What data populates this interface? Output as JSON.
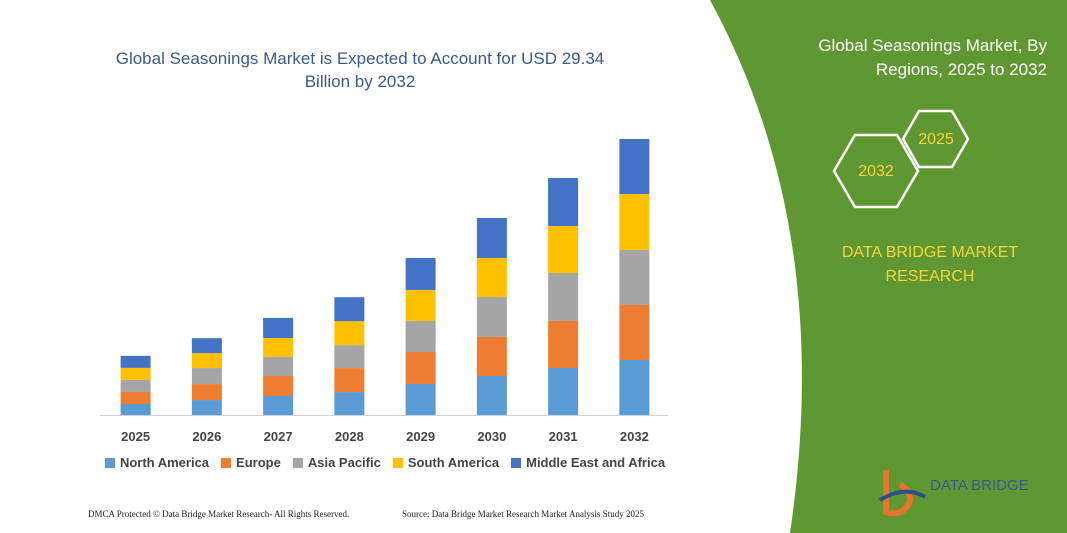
{
  "chart_data": {
    "type": "stacked-bar",
    "title": "Global Seasonings Market is Expected to Account for USD 29.34 Billion by 2032",
    "categories": [
      "2025",
      "2026",
      "2027",
      "2028",
      "2029",
      "2030",
      "2031",
      "2032"
    ],
    "series": [
      {
        "name": "North America",
        "color": "#5b9bd5",
        "values": [
          1.17,
          1.59,
          2.02,
          2.44,
          3.3,
          4.15,
          5.0,
          5.85
        ]
      },
      {
        "name": "Europe",
        "color": "#ed7d31",
        "values": [
          1.28,
          1.7,
          2.13,
          2.55,
          3.4,
          4.15,
          5.0,
          5.85
        ]
      },
      {
        "name": "Asia Pacific",
        "color": "#a5a5a5",
        "values": [
          1.28,
          1.7,
          2.02,
          2.44,
          3.3,
          4.25,
          5.1,
          5.85
        ]
      },
      {
        "name": "South America",
        "color": "#ffc000",
        "values": [
          1.28,
          1.59,
          2.02,
          2.55,
          3.3,
          4.15,
          5.0,
          5.95
        ]
      },
      {
        "name": "Middle East and Africa",
        "color": "#4472c4",
        "values": [
          1.28,
          1.59,
          2.13,
          2.55,
          3.4,
          4.25,
          5.1,
          5.85
        ]
      }
    ]
  },
  "panel": {
    "title": "Global Seasonings Market, By Regions, 2025 to 2032",
    "hex_large": "2032",
    "hex_small": "2025",
    "brand": "DATA BRIDGE MARKET RESEARCH"
  },
  "footer": {
    "copyright": "DMCA Protected © Data Bridge Market Research- All Rights Reserved.",
    "source": "Source: Data Bridge Market Research Market Analysis Study 2025"
  },
  "logo": {
    "text": "DATA BRIDGE"
  }
}
